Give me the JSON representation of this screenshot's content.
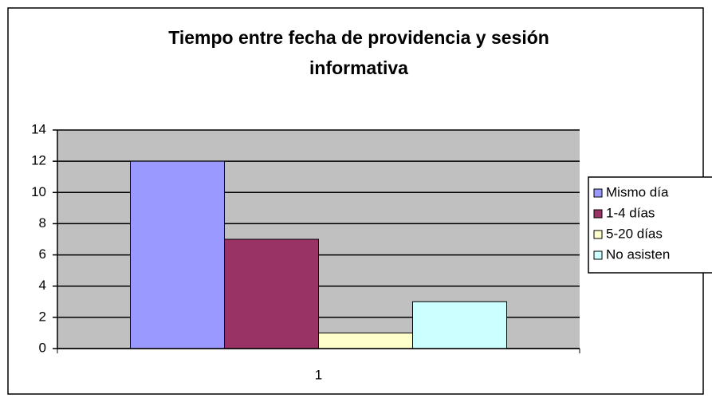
{
  "chart_data": {
    "type": "bar",
    "title": "Tiempo entre fecha de providencia y sesión informativa",
    "categories": [
      "1"
    ],
    "series": [
      {
        "name": "Mismo día",
        "color": "#9999ff",
        "values": [
          12
        ]
      },
      {
        "name": "1-4 días",
        "color": "#993366",
        "values": [
          7
        ]
      },
      {
        "name": "5-20 días",
        "color": "#ffffcc",
        "values": [
          1
        ]
      },
      {
        "name": "No asisten",
        "color": "#ccffff",
        "values": [
          3
        ]
      }
    ],
    "ylim": [
      0,
      14
    ],
    "yticks": [
      0,
      2,
      4,
      6,
      8,
      10,
      12,
      14
    ],
    "grid": true,
    "legend": "right"
  }
}
